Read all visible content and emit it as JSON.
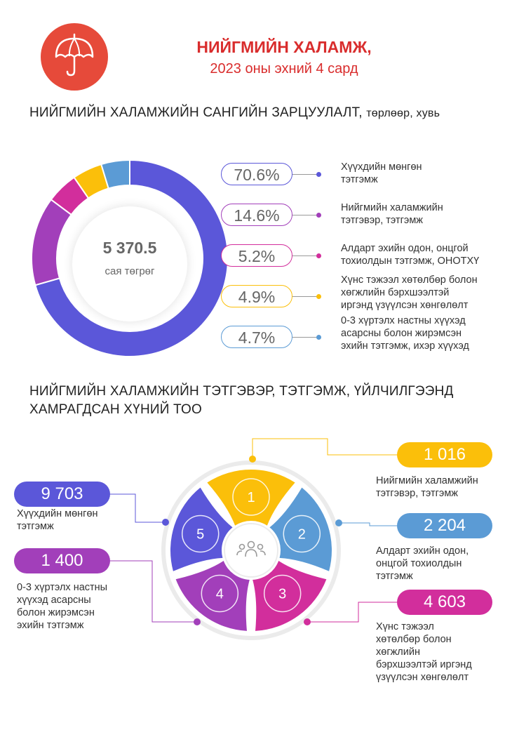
{
  "header": {
    "icon": "umbrella-icon",
    "title": "НИЙГМИЙН ХАЛАМЖ,",
    "subtitle": "2023 оны эхний 4 сард"
  },
  "section1": {
    "title": "НИЙГМИЙН ХАЛАМЖИЙН  САНГИЙН ЗАРЦУУЛАЛТ,",
    "title_suffix": "төрлөөр, хувь"
  },
  "section2": {
    "title_line1": "НИЙГМИЙН ХАЛАМЖИЙН ТЭТГЭВЭР, ТЭТГЭМЖ, ҮЙЛЧИЛГЭЭНД",
    "title_line2": "ХАМРАГДСАН ХҮНИЙ ТОО",
    "center_icon": "people-group-icon"
  },
  "colors": {
    "brand_red": "#e64a3a",
    "title_red": "#d92d2d",
    "violet": "#5b57d9",
    "purple": "#a23fba",
    "magenta": "#d22e9c",
    "yellow": "#fbbf0a",
    "blue": "#5b9bd5"
  },
  "chart_data": [
    {
      "type": "pie",
      "variant": "donut",
      "total": "5 370.5",
      "total_unit": "сая төгрөг",
      "categories": [
        "Хүүхдийн мөнгөн тэтгэмж",
        "Нийгмийн халамжийн тэтгэвэр, тэтгэмж",
        "Алдарт эхийн одон, онцгой тохиолдын тэтгэмж, ОНОТХҮ",
        "Хүнс тэжээл хөтөлбөр болон хөгжлийн бэрхшээлтэй иргэнд үзүүлсэн хөнгөлөлт",
        "0-3 хүртэлх настны хүүхэд асарсны болон жирэмсэн эхийн тэтгэмж, ихэр хүүхэд"
      ],
      "values": [
        70.6,
        14.6,
        5.2,
        4.9,
        4.7
      ],
      "labels": [
        "70.6%",
        "14.6%",
        "5.2%",
        "4.9%",
        "4.7%"
      ],
      "label_lines": [
        [
          "Хүүхдийн мөнгөн",
          "тэтгэмж"
        ],
        [
          "Нийгмийн халамжийн",
          "тэтгэвэр, тэтгэмж"
        ],
        [
          "Алдарт эхийн одон, онцгой",
          "тохиолдын тэтгэмж, ОНОТХҮ"
        ],
        [
          "Хүнс тэжээл хөтөлбөр болон",
          "хөгжлийн бэрхшээлтэй",
          "иргэнд үзүүлсэн хөнгөлөлт"
        ],
        [
          "0-3 хүртэлх настны хүүхэд",
          "асарсны болон жирэмсэн",
          "эхийн тэтгэмж, ихэр хүүхэд"
        ]
      ],
      "colors": [
        "#5b57d9",
        "#a23fba",
        "#d22e9c",
        "#fbbf0a",
        "#5b9bd5"
      ],
      "unit": "%"
    },
    {
      "type": "pie",
      "variant": "petal-infographic",
      "petal_numbers": [
        "1",
        "2",
        "3",
        "4",
        "5"
      ],
      "values": [
        1016,
        2204,
        4603,
        1400,
        9703
      ],
      "value_labels": [
        "1 016",
        "2 204",
        "4 603",
        "1 400",
        "9 703"
      ],
      "categories": [
        "Нийгмийн халамжийн тэтгэвэр, тэтгэмж",
        "Алдарт эхийн одон, онцгой тохиолдын тэтгэмж",
        "Хүнс тэжээл хөтөлбөр болон хөгжлийн бэрхшээлтэй иргэнд үзүүлсэн хөнгөлөлт",
        "0-3 хүртэлх настны хүүхэд асарсны болон жирэмсэн эхийн тэтгэмж",
        "Хүүхдийн мөнгөн тэтгэмж"
      ],
      "label_lines": [
        [
          "Нийгмийн халамжийн",
          "тэтгэвэр, тэтгэмж"
        ],
        [
          "Алдарт эхийн одон,",
          "онцгой тохиолдын",
          "тэтгэмж"
        ],
        [
          "Хүнс тэжээл",
          "хөтөлбөр болон",
          "хөгжлийн",
          "бэрхшээлтэй иргэнд",
          "үзүүлсэн хөнгөлөлт"
        ],
        [
          "0-3 хүртэлх настны",
          "хүүхэд асарсны",
          "болон жирэмсэн",
          "эхийн тэтгэмж"
        ],
        [
          "Хүүхдийн мөнгөн",
          "тэтгэмж"
        ]
      ],
      "colors": [
        "#fbbf0a",
        "#5b9bd5",
        "#d22e9c",
        "#a23fba",
        "#5b57d9"
      ]
    }
  ]
}
